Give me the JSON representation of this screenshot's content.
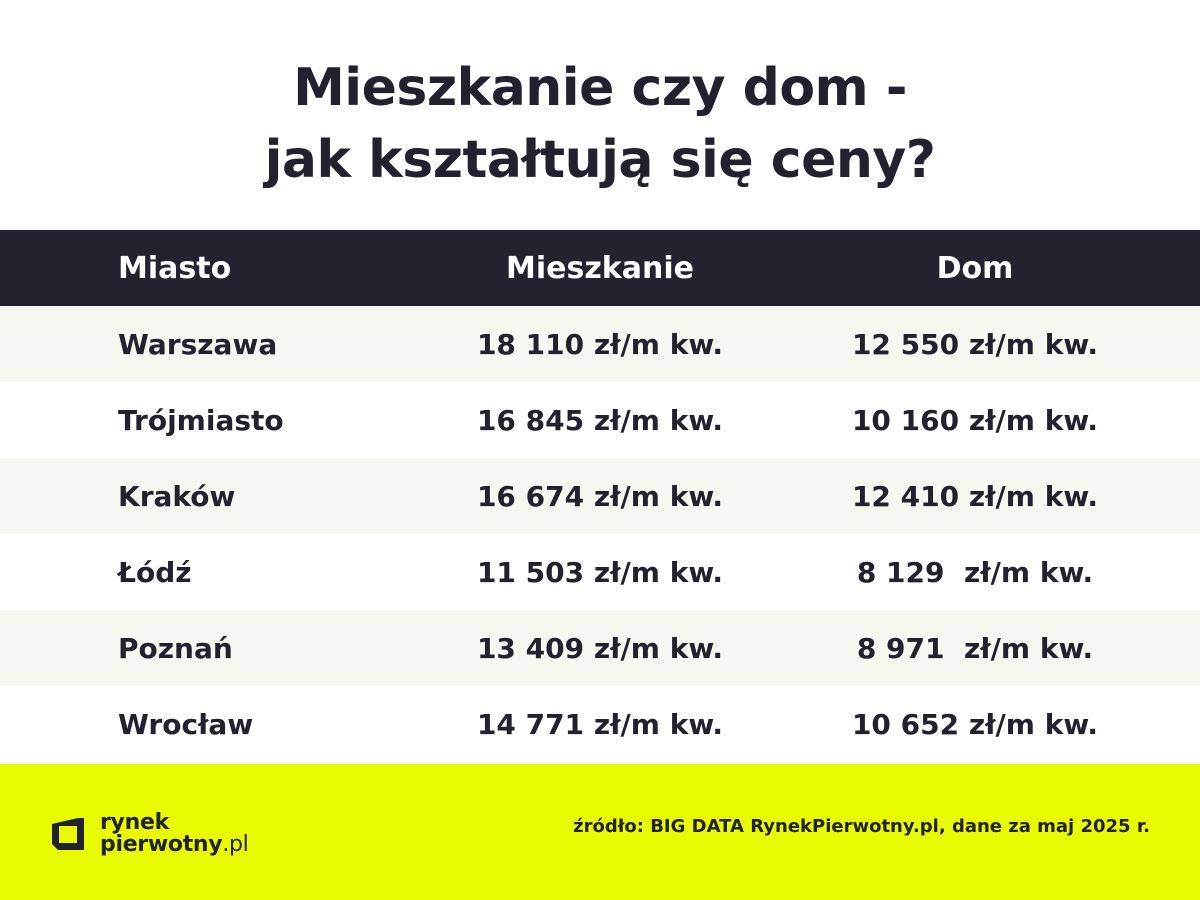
{
  "title": {
    "line1": "Mieszkanie czy dom -",
    "line2": "jak kształtują się ceny?"
  },
  "table": {
    "headers": [
      "Miasto",
      "Mieszkanie",
      "Dom"
    ],
    "rows": [
      [
        "Warszawa",
        "18 110 zł/m kw.",
        "12 550 zł/m kw."
      ],
      [
        "Trójmiasto",
        "16 845 zł/m kw.",
        "10 160 zł/m kw."
      ],
      [
        "Kraków",
        "16 674 zł/m kw.",
        "12 410 zł/m kw."
      ],
      [
        "Łódź",
        "11 503 zł/m kw.",
        "8 129  zł/m kw."
      ],
      [
        "Poznań",
        "13 409 zł/m kw.",
        "8 971  zł/m kw."
      ],
      [
        "Wrocław",
        "14 771 zł/m kw.",
        "10 652 zł/m kw."
      ]
    ]
  },
  "footer": {
    "logo_line1": "rynek",
    "logo_line2": "pierwotny",
    "logo_tld": ".pl",
    "source": "źródło: BIG DATA RynekPierwotny.pl, dane za maj 2025 r."
  },
  "colors": {
    "header_bg": "#23232f",
    "footer_bg": "#e9fb00",
    "odd_row_bg": "#f7f7f2",
    "text": "#22222e"
  }
}
